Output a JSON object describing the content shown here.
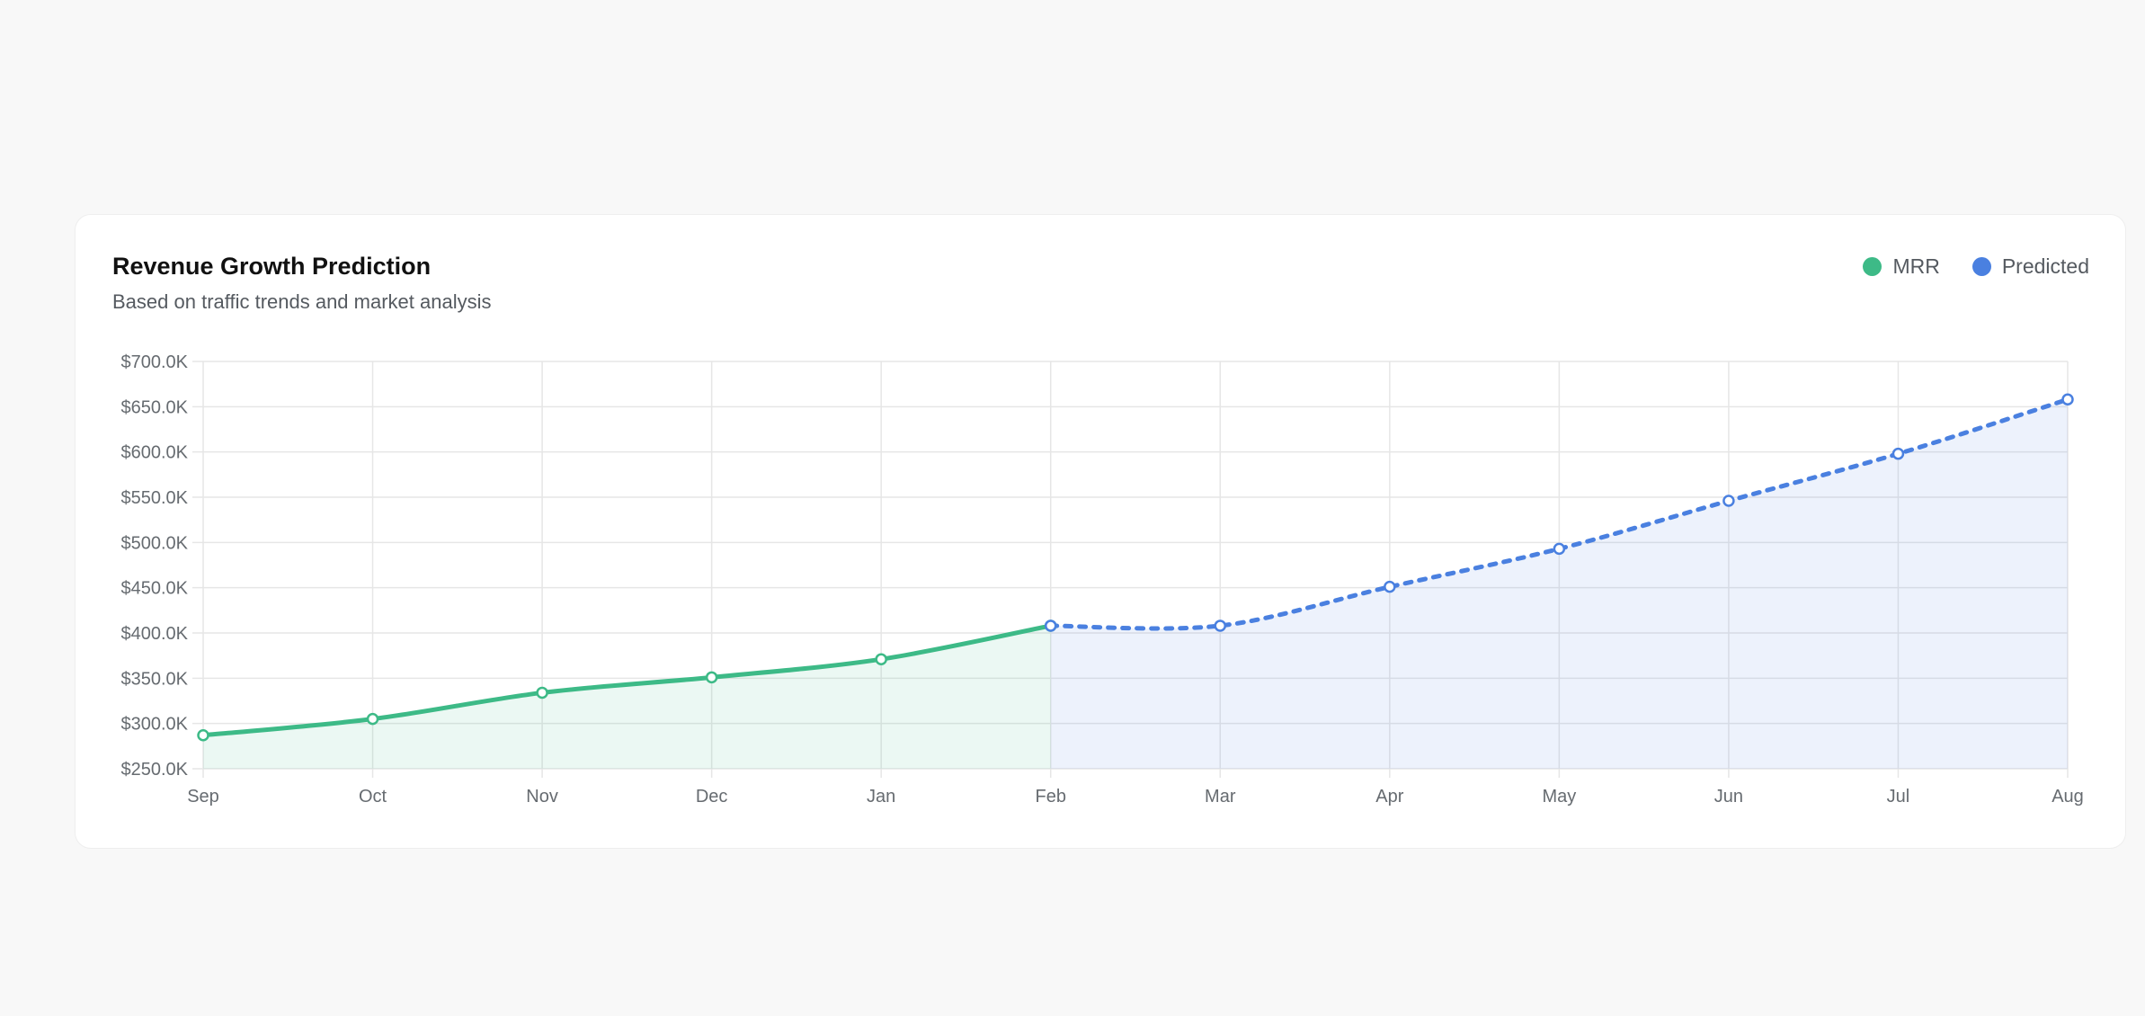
{
  "card": {
    "title": "Revenue Growth Prediction",
    "subtitle": "Based on traffic trends and market analysis"
  },
  "legend": [
    {
      "label": "MRR",
      "color": "#3dba87"
    },
    {
      "label": "Predicted",
      "color": "#4a80e0"
    }
  ],
  "chart_data": {
    "type": "line",
    "title": "Revenue Growth Prediction",
    "subtitle": "Based on traffic trends and market analysis",
    "categories": [
      "Sep",
      "Oct",
      "Nov",
      "Dec",
      "Jan",
      "Feb",
      "Mar",
      "Apr",
      "May",
      "Jun",
      "Jul",
      "Aug"
    ],
    "y_ticks": [
      "$250.0K",
      "$300.0K",
      "$350.0K",
      "$400.0K",
      "$450.0K",
      "$500.0K",
      "$550.0K",
      "$600.0K",
      "$650.0K",
      "$700.0K"
    ],
    "ylim": [
      250000,
      700000
    ],
    "grid": true,
    "legend_position": "top-right",
    "series": [
      {
        "name": "MRR",
        "color": "#3dba87",
        "style": "solid",
        "fill": "area",
        "x": [
          "Sep",
          "Oct",
          "Nov",
          "Dec",
          "Jan",
          "Feb"
        ],
        "values": [
          287000,
          305000,
          334000,
          351000,
          371000,
          408000
        ]
      },
      {
        "name": "Predicted",
        "color": "#4a80e0",
        "style": "dashed",
        "fill": "area",
        "x": [
          "Feb",
          "Mar",
          "Apr",
          "May",
          "Jun",
          "Jul",
          "Aug"
        ],
        "values": [
          408000,
          408000,
          451000,
          493000,
          546000,
          598000,
          658000
        ]
      }
    ]
  }
}
